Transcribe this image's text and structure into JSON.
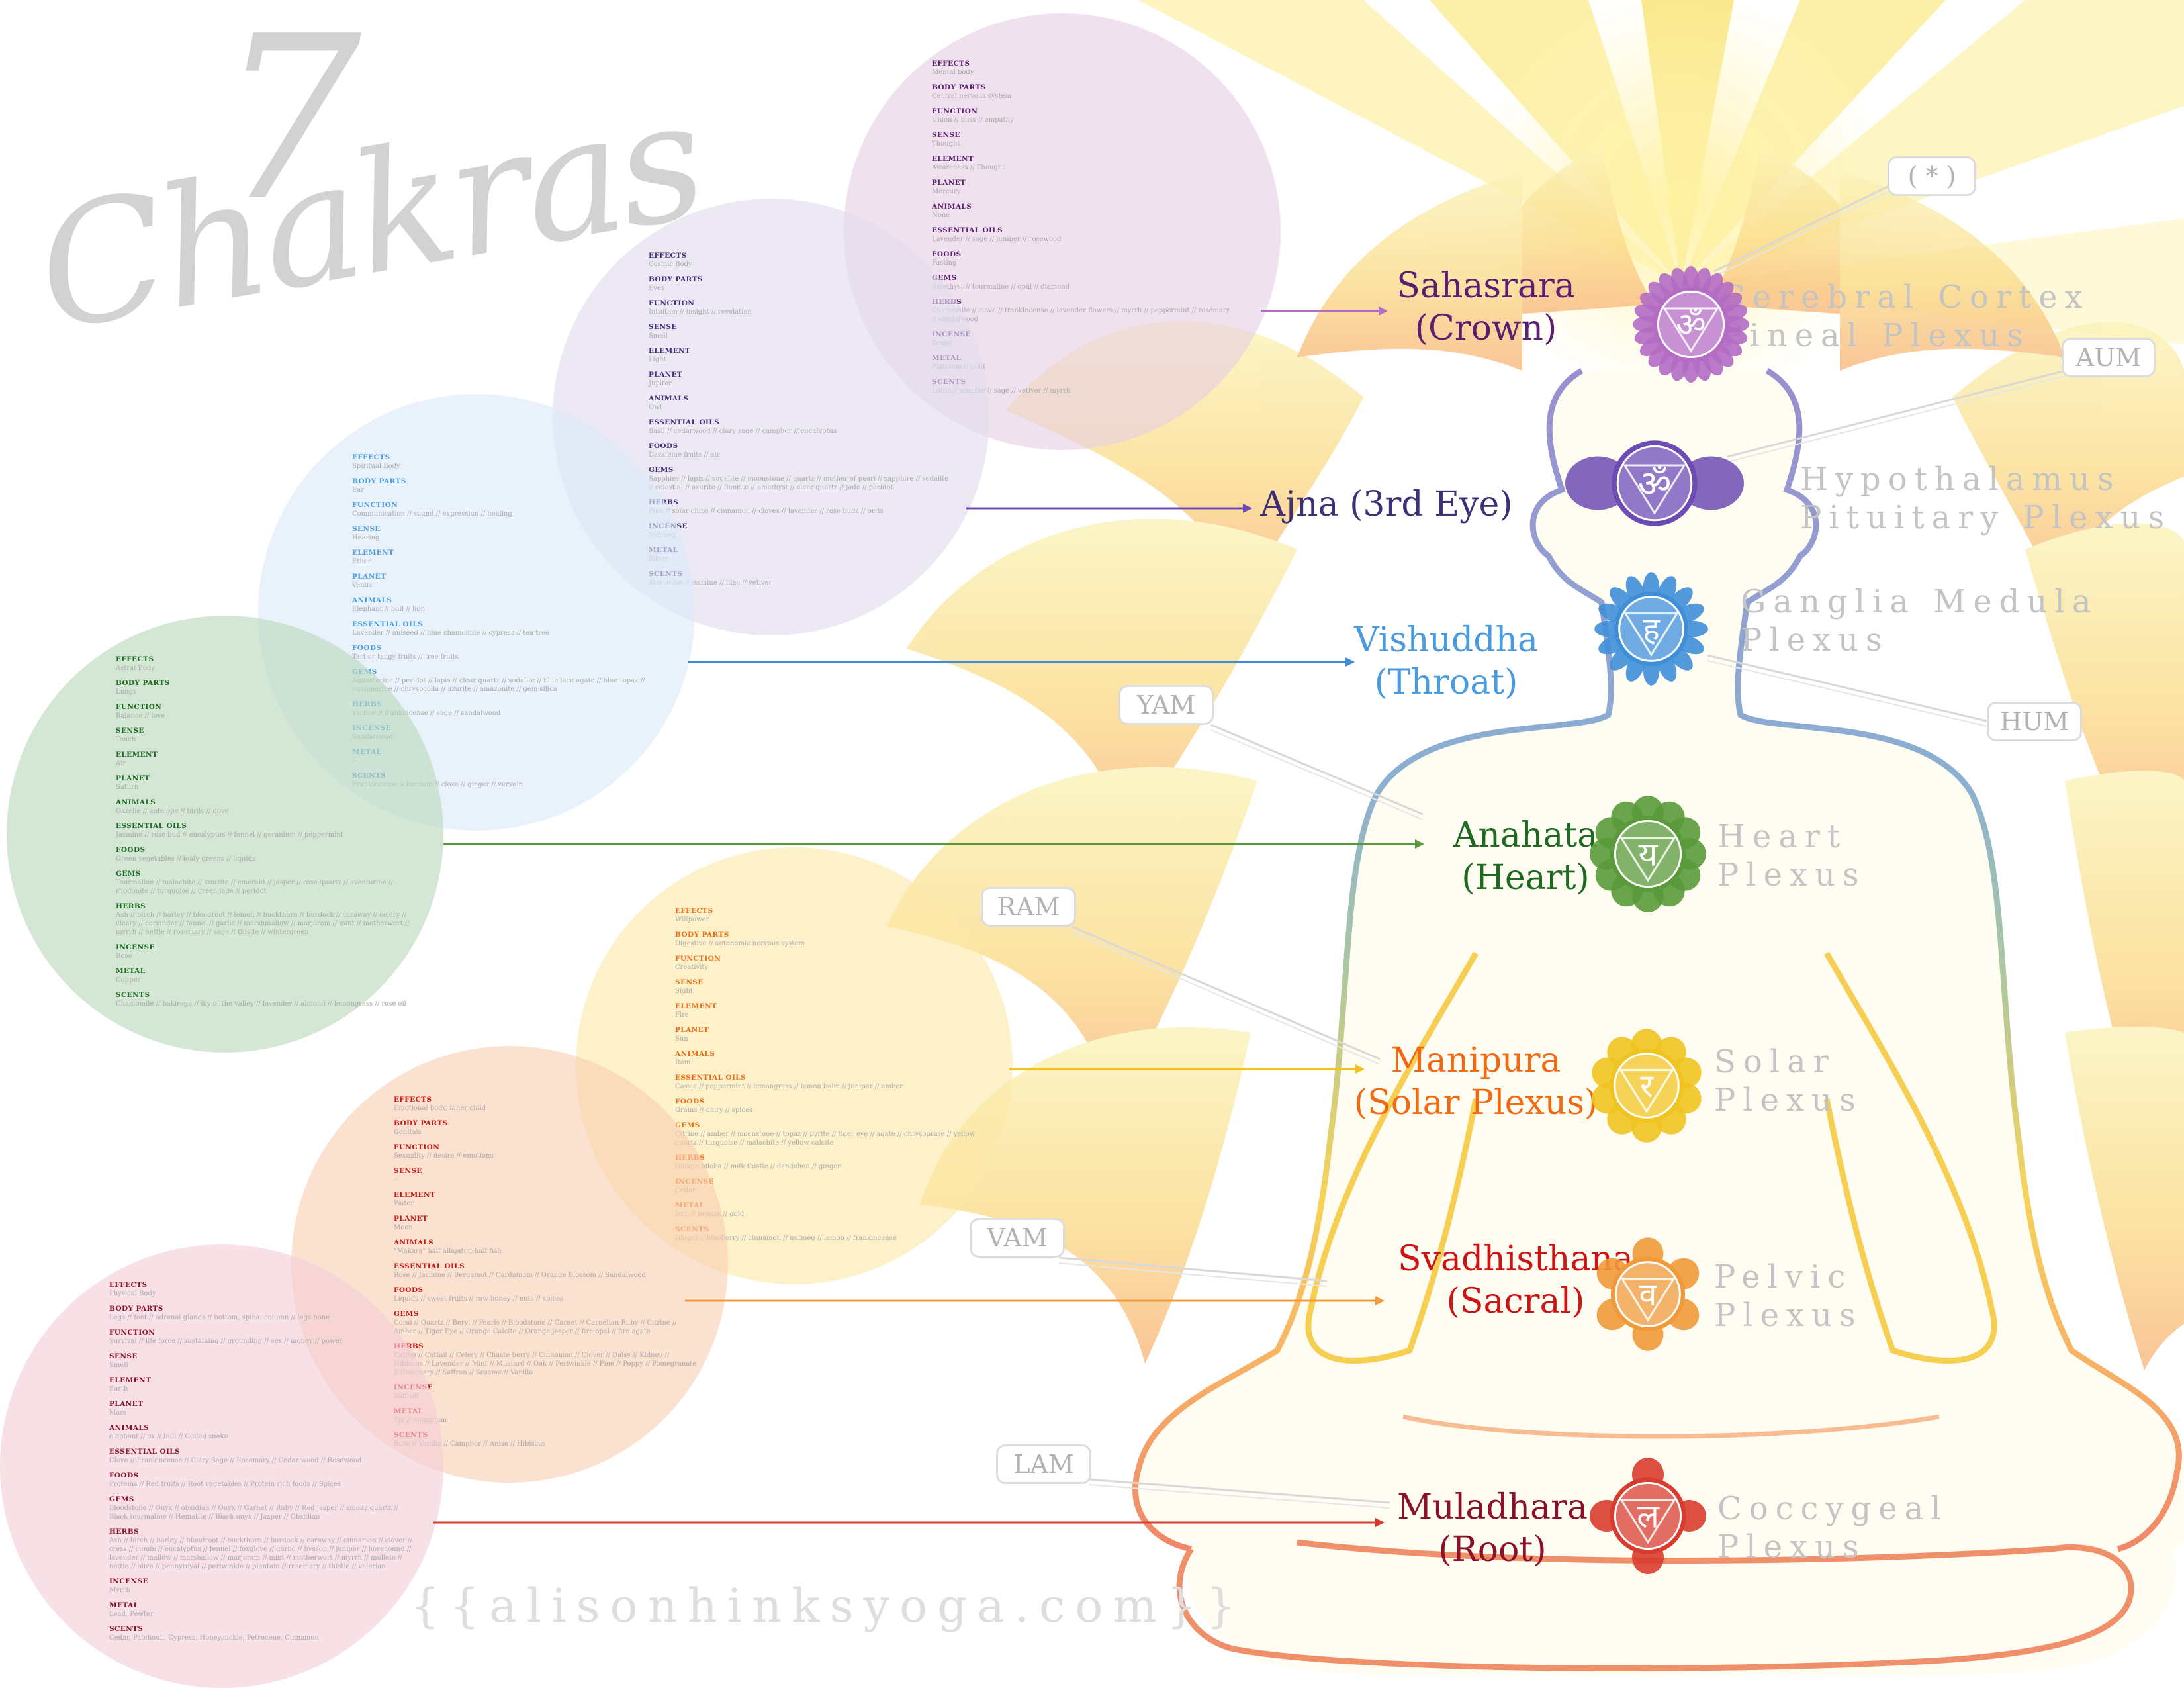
{
  "title": {
    "number": "7",
    "word": "Chakras"
  },
  "website": "{{alisonhinksyoga.com}}",
  "chakras": [
    {
      "id": "sahasrara",
      "color": "#5c1e6e",
      "symbol_color": "#b46cc4",
      "name": "Sahasrara",
      "subtitle": "(Crown)",
      "plexus_line1": "Cerebral Cortex",
      "plexus_line2": "Pineal Plexus",
      "mantra": "( * )",
      "symbol_text": "ॐ",
      "info": [
        {
          "label": "EFFECTS",
          "value": "Mental body"
        },
        {
          "label": "BODY PARTS",
          "value": "Central nervous system"
        },
        {
          "label": "FUNCTION",
          "value": "Union // bliss // empathy"
        },
        {
          "label": "SENSE",
          "value": "Thought"
        },
        {
          "label": "ELEMENT",
          "value": "Awareness // Thought"
        },
        {
          "label": "PLANET",
          "value": "Mercury"
        },
        {
          "label": "ANIMALS",
          "value": "None"
        },
        {
          "label": "ESSENTIAL OILS",
          "value": "Lavender // sage // juniper // rosewood"
        },
        {
          "label": "FOODS",
          "value": "Fasting"
        },
        {
          "label": "GEMS",
          "value": "Amethyst // tourmaline // opal // diamond"
        },
        {
          "label": "HERBS",
          "value": "Chamomile // clove // frankincense // lavender flowers // myrrh // peppermint // rosemary // sandalwood"
        },
        {
          "label": "INCENSE",
          "value": "Peony"
        },
        {
          "label": "METAL",
          "value": "Platinum // gold"
        },
        {
          "label": "SCENTS",
          "value": "Lotus // jasmine // sage // vetiver // myrrh"
        }
      ]
    },
    {
      "id": "ajna",
      "color": "#3e2f78",
      "symbol_color": "#6c4cb4",
      "name": "Ajna (3rd Eye)",
      "subtitle": "",
      "plexus_line1": "Hypothalamus",
      "plexus_line2": "Pituitary Plexus",
      "mantra": "AUM",
      "symbol_text": "ॐ",
      "info": [
        {
          "label": "EFFECTS",
          "value": "Cosmic Body"
        },
        {
          "label": "BODY PARTS",
          "value": "Eyes"
        },
        {
          "label": "FUNCTION",
          "value": "Intuition // insight // revelation"
        },
        {
          "label": "SENSE",
          "value": "Smell"
        },
        {
          "label": "ELEMENT",
          "value": "Light"
        },
        {
          "label": "PLANET",
          "value": "Jupiter"
        },
        {
          "label": "ANIMALS",
          "value": "Owl"
        },
        {
          "label": "ESSENTIAL OILS",
          "value": "Basil // cedarwood // clary sage // camphor // eucalyptus"
        },
        {
          "label": "FOODS",
          "value": "Dark blue fruits // air"
        },
        {
          "label": "GEMS",
          "value": "Sapphire // lapis // sugalite // moonstone // quartz // mother of pearl // sapphire // sodalite // celestial // azurite // fluorite // amethyst // clear quartz // jade // peridot"
        },
        {
          "label": "HERBS",
          "value": "Pine // solar chips // cinnamon // cloves // lavender // rose buds // orris"
        },
        {
          "label": "INCENSE",
          "value": "Nutmeg"
        },
        {
          "label": "METAL",
          "value": "Silver"
        },
        {
          "label": "SCENTS",
          "value": "Star anise // jasmine // lilac // vetiver"
        }
      ]
    },
    {
      "id": "vishuddha",
      "color": "#4a9be0",
      "symbol_color": "#3f8fd8",
      "name": "Vishuddha",
      "subtitle": "(Throat)",
      "plexus_line1": "Ganglia Medula",
      "plexus_line2": "Plexus",
      "mantra": "HUM",
      "symbol_text": "ह",
      "info": [
        {
          "label": "EFFECTS",
          "value": "Spiritual Body"
        },
        {
          "label": "BODY PARTS",
          "value": "Ear"
        },
        {
          "label": "FUNCTION",
          "value": "Communication // sound // expression // healing"
        },
        {
          "label": "SENSE",
          "value": "Hearing"
        },
        {
          "label": "ELEMENT",
          "value": "Ether"
        },
        {
          "label": "PLANET",
          "value": "Venus"
        },
        {
          "label": "ANIMALS",
          "value": "Elephant // bull // lion"
        },
        {
          "label": "ESSENTIAL OILS",
          "value": "Lavender // aniseed // blue chamomile // cypress // tea tree"
        },
        {
          "label": "FOODS",
          "value": "Tart or tangy fruits // tree fruits"
        },
        {
          "label": "GEMS",
          "value": "Aquamarine // peridot // lapis // clear quartz // sodalite // blue lace agate // blue topaz // aquamarine // chrysocolla // azurite // amazonite // gem silica"
        },
        {
          "label": "HERBS",
          "value": "Yarrow // frankincense // sage // sandalwood"
        },
        {
          "label": "INCENSE",
          "value": "Sandalwood"
        },
        {
          "label": "METAL",
          "value": "--"
        },
        {
          "label": "SCENTS",
          "value": "Frankincense // benzoin // clove // ginger // vervain"
        }
      ]
    },
    {
      "id": "anahata",
      "color": "#1e6a22",
      "symbol_color": "#5a9a3a",
      "name": "Anahata",
      "subtitle": "(Heart)",
      "plexus_line1": "Heart",
      "plexus_line2": "Plexus",
      "mantra": "YAM",
      "symbol_text": "य",
      "info": [
        {
          "label": "EFFECTS",
          "value": "Astral Body"
        },
        {
          "label": "BODY PARTS",
          "value": "Lungs"
        },
        {
          "label": "FUNCTION",
          "value": "Balance // love"
        },
        {
          "label": "SENSE",
          "value": "Touch"
        },
        {
          "label": "ELEMENT",
          "value": "Air"
        },
        {
          "label": "PLANET",
          "value": "Saturn"
        },
        {
          "label": "ANIMALS",
          "value": "Gazelle // antelope // birds // dove"
        },
        {
          "label": "ESSENTIAL OILS",
          "value": "Jasmine // rose bud // eucalyptus // fennel // geranium // peppermint"
        },
        {
          "label": "FOODS",
          "value": "Green vegetables // leafy greens // liquids"
        },
        {
          "label": "GEMS",
          "value": "Tourmaline // malachite // kunzite // emerald // jasper // rose quartz // aventurine // rhodonite // turquoise // green jade // peridot"
        },
        {
          "label": "HERBS",
          "value": "Ash // birch // barley // bloodroot // lemon // buckthorn // burdock // caraway // celery // cleary // coriander // fennel // garlic // marshmallow // marjoram // mint // motherwort // myrrh // nettle // rosemary // sage // thistle // wintergreen"
        },
        {
          "label": "INCENSE",
          "value": "Rose"
        },
        {
          "label": "METAL",
          "value": "Copper"
        },
        {
          "label": "SCENTS",
          "value": "Chamomile // bakiroga // lily of the valley // lavender // almond // lemongrass // rose oil"
        }
      ]
    },
    {
      "id": "manipura",
      "color": "#f06a14",
      "symbol_color": "#f0c420",
      "name": "Manipura",
      "subtitle": "(Solar Plexus)",
      "plexus_line1": "Solar",
      "plexus_line2": "Plexus",
      "mantra": "RAM",
      "symbol_text": "र",
      "info": [
        {
          "label": "EFFECTS",
          "value": "Willpower"
        },
        {
          "label": "BODY PARTS",
          "value": "Digestive // autonomic nervous system"
        },
        {
          "label": "FUNCTION",
          "value": "Creativity"
        },
        {
          "label": "SENSE",
          "value": "Sight"
        },
        {
          "label": "ELEMENT",
          "value": "Fire"
        },
        {
          "label": "PLANET",
          "value": "Sun"
        },
        {
          "label": "ANIMALS",
          "value": "Ram"
        },
        {
          "label": "ESSENTIAL OILS",
          "value": "Cassia // peppermint // lemongrass // lemon balm // juniper // amber"
        },
        {
          "label": "FOODS",
          "value": "Grains // dairy // spices"
        },
        {
          "label": "GEMS",
          "value": "Citrine // amber // moonstone // topaz // pyrite // tiger eye // agate // chrysoprase // yellow quartz // turquoise // malachite // yellow calcite"
        },
        {
          "label": "HERBS",
          "value": "Ginkgo biloba // milk thistle // dandelion // ginger"
        },
        {
          "label": "INCENSE",
          "value": "Cedar"
        },
        {
          "label": "METAL",
          "value": "Iron // bronze // gold"
        },
        {
          "label": "SCENTS",
          "value": "Ginger // blueberry // cinnamon // nutmeg // lemon // frankincense"
        }
      ]
    },
    {
      "id": "svadhisthana",
      "color": "#cc1414",
      "symbol_color": "#f09a3a",
      "name": "Svadhisthana",
      "subtitle": "(Sacral)",
      "plexus_line1": "Pelvic",
      "plexus_line2": "Plexus",
      "mantra": "VAM",
      "symbol_text": "व",
      "info": [
        {
          "label": "EFFECTS",
          "value": "Emotional body, inner child"
        },
        {
          "label": "BODY PARTS",
          "value": "Genitals"
        },
        {
          "label": "FUNCTION",
          "value": "Sexuality // desire // emotions"
        },
        {
          "label": "SENSE",
          "value": "--"
        },
        {
          "label": "ELEMENT",
          "value": "Water"
        },
        {
          "label": "PLANET",
          "value": "Moon"
        },
        {
          "label": "ANIMALS",
          "value": "\"Makara\" half alligator, half fish"
        },
        {
          "label": "ESSENTIAL OILS",
          "value": "Rose // Jasmine // Bergamot // Cardamom // Orange Blossom // Sandalwood"
        },
        {
          "label": "FOODS",
          "value": "Liquids // sweet fruits // raw honey // nuts // spices"
        },
        {
          "label": "GEMS",
          "value": "Coral // Quartz // Beryl // Pearls // Bloodstone // Garnet // Carnelian Ruby // Citrine // Amber // Tiger Eye // Orange Calcite // Orange jasper // fire opal // fire agate"
        },
        {
          "label": "HERBS",
          "value": "Catnip // Cattail // Celery // Chaste berry // Cinnamon // Clover // Daisy // Kidney // Hibiscus // Lavender // Mint // Mustard // Oak // Periwinkle // Pine // Poppy // Pomegranate // Rosemary // Saffron // Sesame // Vanilla"
        },
        {
          "label": "INCENSE",
          "value": "Saffron"
        },
        {
          "label": "METAL",
          "value": "Tin // aluminum"
        },
        {
          "label": "SCENTS",
          "value": "Rose // Vanilla // Camphor // Anise // Hibiscus"
        }
      ]
    },
    {
      "id": "muladhara",
      "color": "#8c1028",
      "symbol_color": "#d83c2e",
      "name": "Muladhara",
      "subtitle": "(Root)",
      "plexus_line1": "Coccygeal",
      "plexus_line2": "Plexus",
      "mantra": "LAM",
      "symbol_text": "ल",
      "info": [
        {
          "label": "EFFECTS",
          "value": "Physical Body"
        },
        {
          "label": "BODY PARTS",
          "value": "Legs // feet // adrenal glands // bottom, spinal column // legs bone"
        },
        {
          "label": "FUNCTION",
          "value": "Survival // life force // sustaining // grounding // sex // money // power"
        },
        {
          "label": "SENSE",
          "value": "Smell"
        },
        {
          "label": "ELEMENT",
          "value": "Earth"
        },
        {
          "label": "PLANET",
          "value": "Mars"
        },
        {
          "label": "ANIMALS",
          "value": "elephant // ox // bull // Coiled snake"
        },
        {
          "label": "ESSENTIAL OILS",
          "value": "Clove // Frankincense // Clary Sage // Rosemary // Cedar wood // Rosewood"
        },
        {
          "label": "FOODS",
          "value": "Proteins // Red fruits // Root vegetables // Protein rich foods // Spices"
        },
        {
          "label": "GEMS",
          "value": "Bloodstone // Onyx // obsidian // Onyx // Garnet // Ruby // Red jasper // smoky quartz // Black tourmaline // Hematite // Black onyx // Jasper // Obsidian"
        },
        {
          "label": "HERBS",
          "value": "Ash // birch // barley // bloodroot // buckthorn // burdock // caraway // cinnamon // clover // cress // cumin // eucalyptus // fennel // foxglove // garlic // hyssop // juniper // horehound // lavender // mallow // marshallow // marjoram // mint // motherwort // myrrh // mullein // nettle // olive // pennyroyal // periwinkle // plantain // rosemary // thistle // valerian"
        },
        {
          "label": "INCENSE",
          "value": "Myrrh"
        },
        {
          "label": "METAL",
          "value": "Lead, Pewter"
        },
        {
          "label": "SCENTS",
          "value": "Cedar, Patchouli, Cypress, Honeysuckle, Petrocene, Cinnamon"
        }
      ]
    }
  ]
}
